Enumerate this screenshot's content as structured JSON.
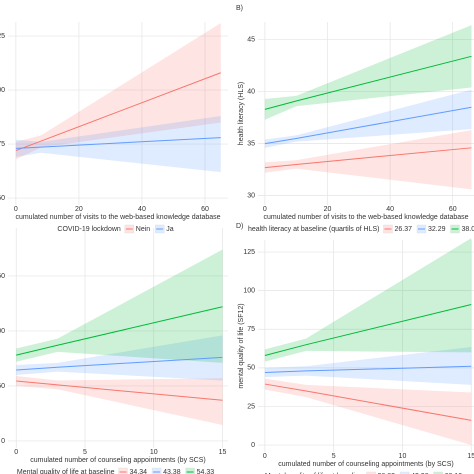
{
  "chart_data": [
    {
      "type": "line",
      "x_label": "cumulated number of visits to the web-based knowledge database",
      "legend_title": "COVID-19 lockdown",
      "legend": "bottom",
      "grid": true,
      "x": [
        0,
        8,
        65
      ],
      "xlim": [
        -2.5,
        67.3
      ],
      "xticks": [
        0,
        20,
        40,
        60
      ],
      "ylim": [
        46.8,
        131.5
      ],
      "yticks": [
        50,
        75,
        100,
        125
      ],
      "series": [
        {
          "name": "Nein",
          "color": "#F8766D",
          "values": [
            72,
            76.4,
            108
          ],
          "lower": [
            68,
            73.5,
            85
          ],
          "upper": [
            76,
            79,
            131
          ]
        },
        {
          "name": "Ja",
          "color": "#619CFF",
          "values": [
            73,
            73.6,
            78
          ],
          "lower": [
            69,
            71,
            62
          ],
          "upper": [
            77,
            76,
            88
          ]
        }
      ]
    },
    {
      "type": "line",
      "panel_label": "B)",
      "y_label": "health literacy (HLS)",
      "x_label": "cumulated number of visits to the web-based knowledge database",
      "legend_title": "health literacy at baseline (quartils of HLS)",
      "legend": "bottom",
      "grid": true,
      "x": [
        0,
        10,
        66
      ],
      "xlim": [
        -2.2,
        66.8
      ],
      "xticks": [
        0,
        20,
        40,
        60
      ],
      "ylim": [
        29.1,
        46.7
      ],
      "yticks": [
        30,
        35,
        40,
        45
      ],
      "series": [
        {
          "name": "26.37",
          "color": "#F8766D",
          "values": [
            32.7,
            33,
            34.6
          ],
          "lower": [
            32.2,
            32.6,
            30.6
          ],
          "upper": [
            33.2,
            33.4,
            36.3
          ]
        },
        {
          "name": "32.29",
          "color": "#619CFF",
          "values": [
            35,
            35.5,
            38.5
          ],
          "lower": [
            34.6,
            35.2,
            36.4
          ],
          "upper": [
            35.4,
            35.8,
            40.2
          ]
        },
        {
          "name": "38.03",
          "color": "#00BA38",
          "values": [
            38.3,
            39.1,
            43.4
          ],
          "lower": [
            37.3,
            38.6,
            40.4
          ],
          "upper": [
            39.3,
            39.6,
            46.4
          ]
        }
      ]
    },
    {
      "type": "line",
      "x_label": "cumulated number of counseling appointments (by SCS)",
      "legend_title": "Mental quality of life at baseline",
      "legend": "bottom",
      "grid": true,
      "x": [
        0,
        3,
        15
      ],
      "xlim": [
        -0.6,
        15.4
      ],
      "xticks": [
        0,
        5,
        10,
        15
      ],
      "ylim": [
        -6.4,
        193.6
      ],
      "yticks": [
        0,
        50,
        100,
        150
      ],
      "series": [
        {
          "name": "34.34",
          "color": "#F8766D",
          "values": [
            54.5,
            51,
            37
          ],
          "lower": [
            50,
            47,
            14.5
          ],
          "upper": [
            59,
            55,
            57
          ]
        },
        {
          "name": "43.38",
          "color": "#619CFF",
          "values": [
            64.5,
            67,
            76
          ],
          "lower": [
            60,
            63,
            55
          ],
          "upper": [
            69,
            71,
            96
          ]
        },
        {
          "name": "54.33",
          "color": "#00BA38",
          "values": [
            78,
            87,
            122
          ],
          "lower": [
            72,
            81,
            71
          ],
          "upper": [
            84,
            93,
            174
          ]
        }
      ]
    },
    {
      "type": "line",
      "panel_label": "D)",
      "y_label": "mental quality of life (SF12)",
      "x_label": "cumulated number of counseling appointments (by SCS)",
      "legend_title": "Mental quality of life at baseline",
      "legend": "bottom",
      "grid": true,
      "x": [
        0,
        3,
        15
      ],
      "xlim": [
        -0.5,
        15.2
      ],
      "xticks": [
        0,
        5,
        10,
        15
      ],
      "ylim": [
        -4.5,
        132.8
      ],
      "yticks": [
        0,
        25,
        50,
        75,
        100,
        125
      ],
      "series": [
        {
          "name": "26.82",
          "color": "#F8766D",
          "values": [
            39.5,
            35,
            16
          ],
          "lower": [
            36,
            31,
            0
          ],
          "upper": [
            43,
            39,
            34
          ]
        },
        {
          "name": "43.38",
          "color": "#619CFF",
          "values": [
            47,
            48,
            51
          ],
          "lower": [
            44,
            45,
            39
          ],
          "upper": [
            50,
            51,
            63.5
          ]
        },
        {
          "name": "68.10",
          "color": "#00BA38",
          "values": [
            58,
            65,
            91
          ],
          "lower": [
            54,
            61,
            60
          ],
          "upper": [
            62,
            69,
            134
          ]
        }
      ]
    }
  ]
}
